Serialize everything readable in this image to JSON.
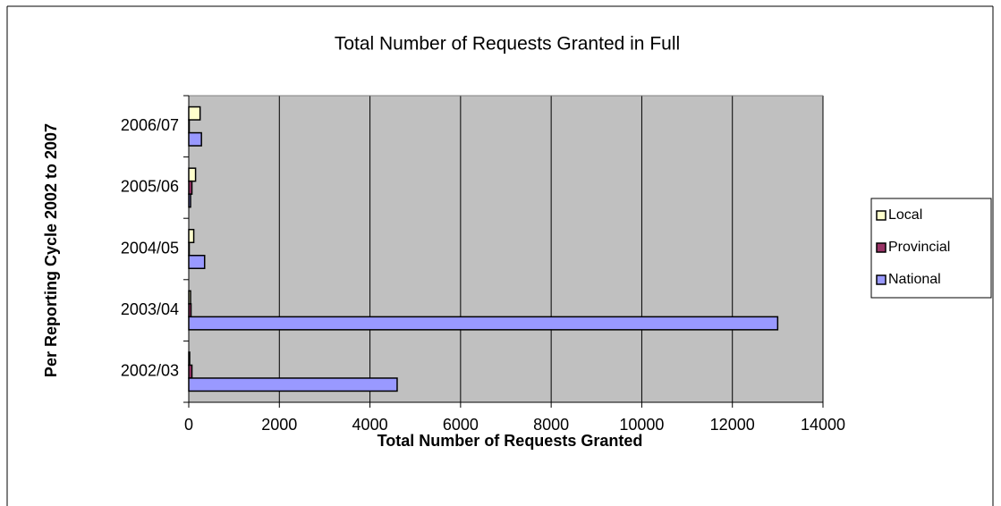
{
  "chart_data": {
    "type": "hbar",
    "title": "Total Number of Requests Granted in Full",
    "xlabel": "Total Number of Requests Granted",
    "ylabel": "Per Reporting Cycle 2002 to 2007",
    "categories": [
      "2002/03",
      "2003/04",
      "2004/05",
      "2005/06",
      "2006/07"
    ],
    "series": [
      {
        "name": "Local",
        "color": "#ffffcc",
        "values": [
          20,
          40,
          110,
          150,
          250
        ]
      },
      {
        "name": "Provincial",
        "color": "#993366",
        "values": [
          70,
          50,
          10,
          70,
          10
        ]
      },
      {
        "name": "National",
        "color": "#9999ff",
        "values": [
          4600,
          13000,
          350,
          40,
          280
        ]
      }
    ],
    "xlim": [
      0,
      14000
    ],
    "xticks": [
      0,
      2000,
      4000,
      6000,
      8000,
      10000,
      12000,
      14000
    ],
    "grid": true,
    "legend": "right"
  }
}
